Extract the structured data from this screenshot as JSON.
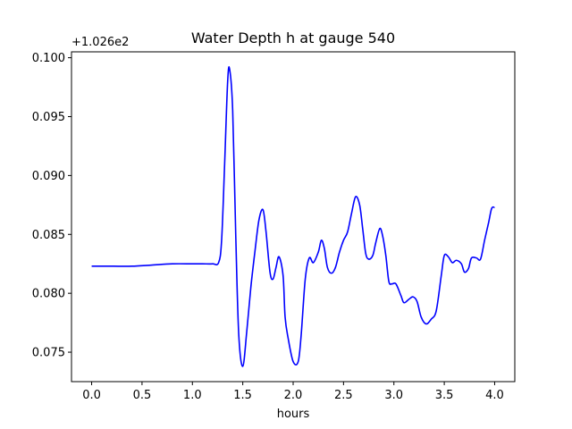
{
  "chart_data": {
    "type": "line",
    "title": "Water Depth h at gauge 540",
    "xlabel": "hours",
    "ylabel": "",
    "y_offset_label": "+1.026e2",
    "xlim": [
      -0.2,
      4.2
    ],
    "ylim": [
      0.0725,
      0.1005
    ],
    "xticks": [
      0.0,
      0.5,
      1.0,
      1.5,
      2.0,
      2.5,
      3.0,
      3.5,
      4.0
    ],
    "xtick_labels": [
      "0.0",
      "0.5",
      "1.0",
      "1.5",
      "2.0",
      "2.5",
      "3.0",
      "3.5",
      "4.0"
    ],
    "yticks": [
      0.075,
      0.08,
      0.085,
      0.09,
      0.095,
      0.1
    ],
    "ytick_labels": [
      "0.075",
      "0.080",
      "0.085",
      "0.090",
      "0.095",
      "0.100"
    ],
    "grid": false,
    "series": [
      {
        "color": "#0000ff",
        "x": [
          0.0,
          0.2,
          0.4,
          0.6,
          0.8,
          1.0,
          1.1,
          1.2,
          1.26,
          1.29,
          1.32,
          1.35,
          1.37,
          1.4,
          1.43,
          1.46,
          1.5,
          1.54,
          1.58,
          1.62,
          1.66,
          1.7,
          1.73,
          1.77,
          1.8,
          1.83,
          1.86,
          1.9,
          1.92,
          1.95,
          2.0,
          2.05,
          2.08,
          2.12,
          2.16,
          2.2,
          2.25,
          2.28,
          2.31,
          2.34,
          2.38,
          2.42,
          2.46,
          2.5,
          2.54,
          2.58,
          2.62,
          2.66,
          2.69,
          2.72,
          2.75,
          2.79,
          2.82,
          2.86,
          2.89,
          2.92,
          2.95,
          2.98,
          3.02,
          3.07,
          3.1,
          3.15,
          3.19,
          3.23,
          3.27,
          3.32,
          3.37,
          3.42,
          3.47,
          3.5,
          3.54,
          3.58,
          3.62,
          3.67,
          3.7,
          3.74,
          3.77,
          3.82,
          3.86,
          3.9,
          3.94,
          3.97,
          4.0
        ],
        "y": [
          0.0823,
          0.0823,
          0.0823,
          0.0824,
          0.0825,
          0.0825,
          0.0825,
          0.0825,
          0.0826,
          0.0845,
          0.091,
          0.098,
          0.099,
          0.0955,
          0.085,
          0.0765,
          0.0738,
          0.0768,
          0.0805,
          0.0835,
          0.0862,
          0.0871,
          0.0853,
          0.0818,
          0.0812,
          0.0822,
          0.0831,
          0.0815,
          0.078,
          0.0762,
          0.0742,
          0.0742,
          0.0765,
          0.0812,
          0.083,
          0.0826,
          0.0835,
          0.0845,
          0.0838,
          0.0822,
          0.0817,
          0.0822,
          0.0835,
          0.0845,
          0.0852,
          0.0868,
          0.0882,
          0.0875,
          0.0855,
          0.0834,
          0.0829,
          0.0832,
          0.0843,
          0.0855,
          0.0848,
          0.0832,
          0.081,
          0.0808,
          0.0808,
          0.0798,
          0.0792,
          0.0795,
          0.0797,
          0.0793,
          0.078,
          0.0774,
          0.0778,
          0.0785,
          0.0815,
          0.0832,
          0.0831,
          0.0826,
          0.0828,
          0.0825,
          0.0818,
          0.0821,
          0.083,
          0.083,
          0.0829,
          0.0845,
          0.086,
          0.0872,
          0.0873
        ]
      }
    ]
  }
}
